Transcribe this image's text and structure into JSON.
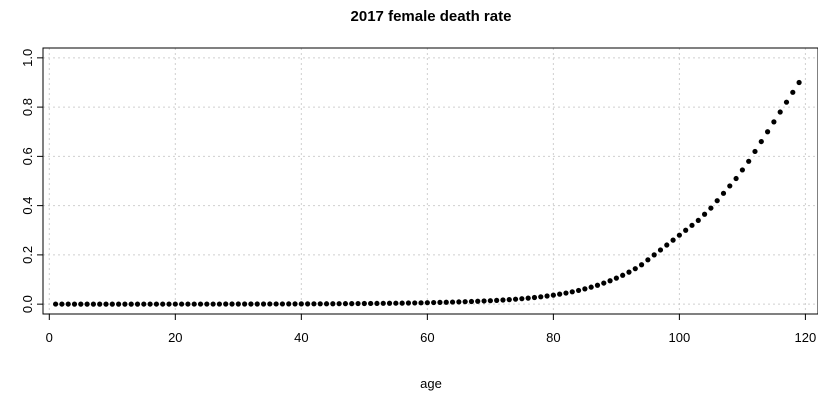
{
  "chart_data": {
    "type": "scatter",
    "title": "2017 female death rate",
    "xlabel": "age",
    "ylabel": "",
    "xlim": [
      -1,
      122
    ],
    "ylim": [
      -0.04,
      1.04
    ],
    "xticks": [
      0,
      20,
      40,
      60,
      80,
      100,
      120
    ],
    "yticks": [
      0.0,
      0.2,
      0.4,
      0.6,
      0.8,
      1.0
    ],
    "xtick_labels": [
      "0",
      "20",
      "40",
      "60",
      "80",
      "100",
      "120"
    ],
    "ytick_labels": [
      "0.0",
      "0.2",
      "0.4",
      "0.6",
      "0.8",
      "1.0"
    ],
    "grid": true,
    "point_color": "#000000",
    "x": [
      1,
      2,
      3,
      4,
      5,
      6,
      7,
      8,
      9,
      10,
      11,
      12,
      13,
      14,
      15,
      16,
      17,
      18,
      19,
      20,
      21,
      22,
      23,
      24,
      25,
      26,
      27,
      28,
      29,
      30,
      31,
      32,
      33,
      34,
      35,
      36,
      37,
      38,
      39,
      40,
      41,
      42,
      43,
      44,
      45,
      46,
      47,
      48,
      49,
      50,
      51,
      52,
      53,
      54,
      55,
      56,
      57,
      58,
      59,
      60,
      61,
      62,
      63,
      64,
      65,
      66,
      67,
      68,
      69,
      70,
      71,
      72,
      73,
      74,
      75,
      76,
      77,
      78,
      79,
      80,
      81,
      82,
      83,
      84,
      85,
      86,
      87,
      88,
      89,
      90,
      91,
      92,
      93,
      94,
      95,
      96,
      97,
      98,
      99,
      100,
      101,
      102,
      103,
      104,
      105,
      106,
      107,
      108,
      109,
      110,
      111,
      112,
      113,
      114,
      115,
      116,
      117,
      118,
      119
    ],
    "y": [
      0.0003,
      0.0002,
      0.0002,
      0.0001,
      0.0001,
      0.0001,
      0.0001,
      0.0001,
      0.0001,
      0.0001,
      0.0001,
      0.0001,
      0.0001,
      0.0001,
      0.0002,
      0.0002,
      0.0002,
      0.0002,
      0.0002,
      0.0003,
      0.0003,
      0.0003,
      0.0003,
      0.0003,
      0.0004,
      0.0004,
      0.0004,
      0.0005,
      0.0005,
      0.0005,
      0.0006,
      0.0006,
      0.0007,
      0.0007,
      0.0008,
      0.0008,
      0.0009,
      0.001,
      0.001,
      0.0011,
      0.0012,
      0.0013,
      0.0014,
      0.0015,
      0.0017,
      0.0018,
      0.002,
      0.0022,
      0.0024,
      0.0026,
      0.0028,
      0.003,
      0.0033,
      0.0036,
      0.0039,
      0.0042,
      0.0046,
      0.005,
      0.0055,
      0.006,
      0.0065,
      0.0071,
      0.0077,
      0.0084,
      0.0091,
      0.0099,
      0.0108,
      0.0118,
      0.0129,
      0.014,
      0.0153,
      0.0168,
      0.0184,
      0.0202,
      0.0222,
      0.0245,
      0.027,
      0.0298,
      0.033,
      0.0366,
      0.0406,
      0.0451,
      0.0501,
      0.0557,
      0.062,
      0.069,
      0.0768,
      0.0855,
      0.095,
      0.1056,
      0.1172,
      0.13,
      0.144,
      0.16,
      0.18,
      0.2,
      0.22,
      0.24,
      0.26,
      0.28,
      0.3,
      0.32,
      0.34,
      0.365,
      0.39,
      0.42,
      0.45,
      0.48,
      0.51,
      0.545,
      0.58,
      0.62,
      0.66,
      0.7,
      0.74,
      0.78,
      0.82,
      0.86,
      0.9
    ]
  }
}
